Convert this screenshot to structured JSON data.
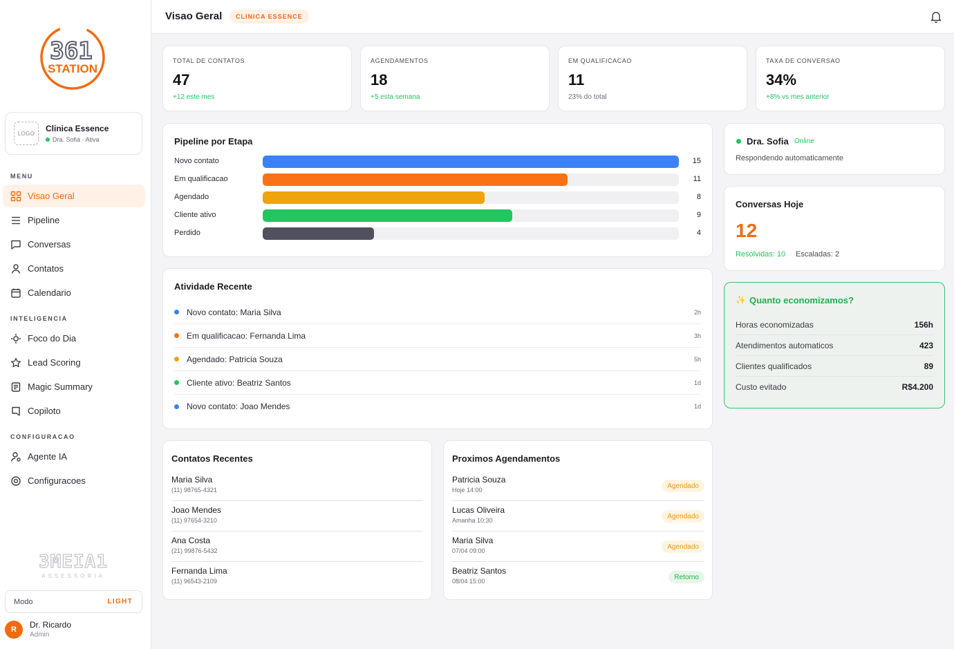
{
  "sidebar": {
    "brand_top": "361",
    "brand_bottom": "STATION",
    "clinic": {
      "logo_text": "LOGO",
      "name": "Clinica Essence",
      "status": "Dra. Sofia · Ativa",
      "status_color": "#22c55e"
    },
    "sections": [
      {
        "label": "MENU"
      },
      {
        "label": "INTELIGENCIA"
      },
      {
        "label": "CONFIGURACAO"
      }
    ],
    "items": [
      {
        "label": "Visao Geral",
        "icon": "grid-icon",
        "active": true
      },
      {
        "label": "Pipeline",
        "icon": "list-icon"
      },
      {
        "label": "Conversas",
        "icon": "chat-icon"
      },
      {
        "label": "Contatos",
        "icon": "user-icon"
      },
      {
        "label": "Calendario",
        "icon": "calendar-icon"
      },
      {
        "label": "Foco do Dia",
        "icon": "target-icon"
      },
      {
        "label": "Lead Scoring",
        "icon": "star-icon"
      },
      {
        "label": "Magic Summary",
        "icon": "document-icon"
      },
      {
        "label": "Copiloto",
        "icon": "bookmark-icon"
      },
      {
        "label": "Agente IA",
        "icon": "agent-icon"
      },
      {
        "label": "Configuracoes",
        "icon": "settings-icon"
      }
    ],
    "footer_brand": "3MEIA1",
    "footer_brand_sub": "ASSESSORIA",
    "mode": {
      "label": "Modo",
      "value": "LIGHT"
    },
    "user": {
      "initial": "R",
      "name": "Dr. Ricardo",
      "role": "Admin"
    }
  },
  "header": {
    "title": "Visao Geral",
    "badge": "CLINICA ESSENCE",
    "bell_icon": "bell-icon"
  },
  "stats": [
    {
      "label": "TOTAL DE CONTATOS",
      "value": "47",
      "sub": "+12 este mes",
      "sub_color": "#22c55e"
    },
    {
      "label": "AGENDAMENTOS",
      "value": "18",
      "sub": "+5 esta semana",
      "sub_color": "#22c55e"
    },
    {
      "label": "EM QUALIFICACAO",
      "value": "11",
      "sub": "23% do total",
      "sub_color": "#6b6b75"
    },
    {
      "label": "TAXA DE CONVERSAO",
      "value": "34%",
      "sub": "+8% vs mes anterior",
      "sub_color": "#22c55e"
    }
  ],
  "pipeline": {
    "title": "Pipeline por Etapa",
    "max": 15,
    "stages": [
      {
        "label": "Novo contato",
        "count": 15,
        "color": "#3b82f6"
      },
      {
        "label": "Em qualificacao",
        "count": 11,
        "color": "#f97316"
      },
      {
        "label": "Agendado",
        "count": 8,
        "color": "#f0a30a"
      },
      {
        "label": "Cliente ativo",
        "count": 9,
        "color": "#22c55e"
      },
      {
        "label": "Perdido",
        "count": 4,
        "color": "#50505e"
      }
    ]
  },
  "activity": {
    "title": "Atividade Recente",
    "items": [
      {
        "text": "Novo contato: Maria Silva",
        "time": "2h",
        "color": "#3b82f6"
      },
      {
        "text": "Em qualificacao: Fernanda Lima",
        "time": "3h",
        "color": "#f97316"
      },
      {
        "text": "Agendado: Patricia Souza",
        "time": "5h",
        "color": "#f0a30a"
      },
      {
        "text": "Cliente ativo: Beatriz Santos",
        "time": "1d",
        "color": "#22c55e"
      },
      {
        "text": "Novo contato: Joao Mendes",
        "time": "1d",
        "color": "#3b82f6"
      }
    ]
  },
  "contacts": {
    "title": "Contatos Recentes",
    "items": [
      {
        "name": "Maria Silva",
        "phone": "(11) 98765-4321"
      },
      {
        "name": "Joao Mendes",
        "phone": "(11) 97654-3210"
      },
      {
        "name": "Ana Costa",
        "phone": "(21) 99876-5432"
      },
      {
        "name": "Fernanda Lima",
        "phone": "(11) 96543-2109"
      }
    ]
  },
  "appointments": {
    "title": "Proximos Agendamentos",
    "items": [
      {
        "name": "Patricia Souza",
        "when": "Hoje 14:00",
        "status": "Agendado",
        "kind": "ag"
      },
      {
        "name": "Lucas Oliveira",
        "when": "Amanha 10:30",
        "status": "Agendado",
        "kind": "ag"
      },
      {
        "name": "Maria Silva",
        "when": "07/04 09:00",
        "status": "Agendado",
        "kind": "ag"
      },
      {
        "name": "Beatriz Santos",
        "when": "08/04 15:00",
        "status": "Retorno",
        "kind": "ret"
      }
    ]
  },
  "agent": {
    "name": "Dra. Sofia",
    "status": "Online",
    "desc": "Respondendo automaticamente"
  },
  "conversations": {
    "title": "Conversas Hoje",
    "count": "12",
    "resolved": "Resolvidas: 10",
    "escalated": "Escaladas: 2"
  },
  "savings": {
    "icon": "✨",
    "title": "Quanto economizamos?",
    "rows": [
      {
        "label": "Horas economizadas",
        "value": "156h"
      },
      {
        "label": "Atendimentos automaticos",
        "value": "423"
      },
      {
        "label": "Clientes qualificados",
        "value": "89"
      },
      {
        "label": "Custo evitado",
        "value": "R$4.200"
      }
    ]
  },
  "colors": {
    "accent": "#f26a0f",
    "success": "#22c55e"
  }
}
